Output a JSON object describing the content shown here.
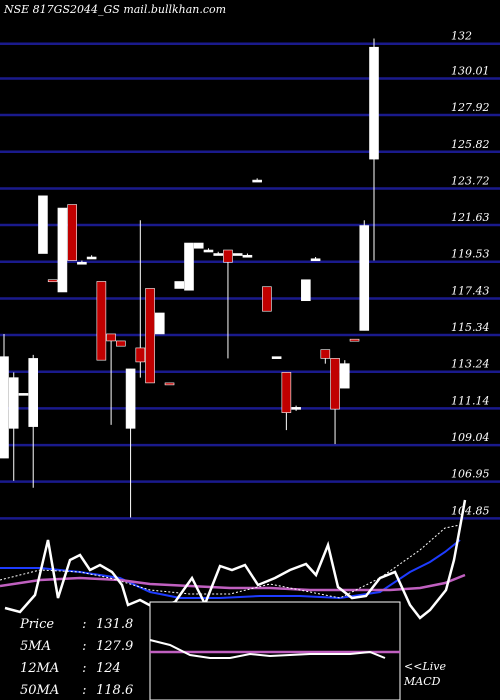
{
  "header": {
    "title": "NSE 817GS2044_GS mail.bullkhan.com"
  },
  "legend": {
    "price_label": "Price",
    "price_value": "131.8",
    "ma5_label": "5MA",
    "ma5_value": "127.9",
    "ma12_label": "12MA",
    "ma12_value": "124",
    "ma50_label": "50MA",
    "ma50_value": "118.6"
  },
  "macd_label": "MACD",
  "live_label": "<<Live",
  "colors": {
    "background": "#000000",
    "grid": "#1a1a8c",
    "up_candle": "#ffffff",
    "down_candle": "#c00000",
    "ma5": "#ffffff",
    "ma12": "#1e3cff",
    "ma50": "#c060c0"
  },
  "chart_data": {
    "type": "candlestick",
    "title": "NSE 817GS2044_GS mail.bullkhan.com",
    "ylim": [
      103.9,
      134.5
    ],
    "y_ticks": [
      "132",
      "130.01",
      "127.92",
      "125.82",
      "123.72",
      "121.63",
      "119.53",
      "117.43",
      "115.34",
      "113.24",
      "111.14",
      "109.04",
      "106.95",
      "104.85"
    ],
    "grid": true,
    "candles": [
      {
        "open": 108.3,
        "high": 115.4,
        "low": 108.3,
        "close": 114.1
      },
      {
        "open": 110.0,
        "high": 113.2,
        "low": 107.0,
        "close": 112.9
      },
      {
        "open": 112.0,
        "high": 112.0,
        "low": 111.9,
        "close": 112.0
      },
      {
        "open": 110.1,
        "high": 114.2,
        "low": 106.6,
        "close": 114.0
      },
      {
        "open": 120.0,
        "high": 123.3,
        "low": 120.0,
        "close": 123.3
      },
      {
        "open": 118.5,
        "high": 118.5,
        "low": 118.4,
        "close": 118.4
      },
      {
        "open": 117.8,
        "high": 122.6,
        "low": 117.8,
        "close": 122.6
      },
      {
        "open": 122.8,
        "high": 122.8,
        "low": 119.6,
        "close": 119.6
      },
      {
        "open": 119.5,
        "high": 119.6,
        "low": 119.5,
        "close": 119.5
      },
      {
        "open": 119.8,
        "high": 119.9,
        "low": 119.8,
        "close": 119.8
      },
      {
        "open": 118.4,
        "high": 118.4,
        "low": 113.9,
        "close": 113.9
      },
      {
        "open": 115.4,
        "high": 115.4,
        "low": 110.2,
        "close": 115.0
      },
      {
        "open": 115.0,
        "high": 115.0,
        "low": 114.7,
        "close": 114.7
      },
      {
        "open": 110.0,
        "high": 113.4,
        "low": 104.9,
        "close": 113.4
      },
      {
        "open": 114.6,
        "high": 121.9,
        "low": 112.9,
        "close": 113.8
      },
      {
        "open": 118.0,
        "high": 118.0,
        "low": 112.6,
        "close": 112.6
      },
      {
        "open": 115.4,
        "high": 116.6,
        "low": 115.4,
        "close": 116.6
      },
      {
        "open": 112.6,
        "high": 112.6,
        "low": 112.5,
        "close": 112.5
      },
      {
        "open": 118.0,
        "high": 118.4,
        "low": 118.0,
        "close": 118.4
      },
      {
        "open": 117.9,
        "high": 120.6,
        "low": 117.9,
        "close": 120.6
      },
      {
        "open": 120.3,
        "high": 120.6,
        "low": 120.3,
        "close": 120.6
      },
      {
        "open": 120.2,
        "high": 120.3,
        "low": 120.1,
        "close": 120.2
      },
      {
        "open": 120.0,
        "high": 120.1,
        "low": 119.9,
        "close": 120.0
      },
      {
        "open": 120.2,
        "high": 120.2,
        "low": 114.0,
        "close": 119.5
      },
      {
        "open": 120.0,
        "high": 120.0,
        "low": 119.9,
        "close": 120.0
      },
      {
        "open": 119.9,
        "high": 120.0,
        "low": 119.9,
        "close": 119.9
      },
      {
        "open": 124.2,
        "high": 124.3,
        "low": 124.2,
        "close": 124.2
      },
      {
        "open": 118.1,
        "high": 118.1,
        "low": 116.7,
        "close": 116.7
      },
      {
        "open": 114.1,
        "high": 114.1,
        "low": 114.0,
        "close": 114.1
      },
      {
        "open": 113.2,
        "high": 113.2,
        "low": 109.9,
        "close": 110.9
      },
      {
        "open": 111.2,
        "high": 111.3,
        "low": 111.0,
        "close": 111.2
      },
      {
        "open": 117.3,
        "high": 118.5,
        "low": 117.3,
        "close": 118.5
      },
      {
        "open": 119.6,
        "high": 119.8,
        "low": 119.6,
        "close": 119.7
      },
      {
        "open": 114.5,
        "high": 114.5,
        "low": 113.7,
        "close": 114.0
      },
      {
        "open": 114.0,
        "high": 114.0,
        "low": 109.1,
        "close": 111.1
      },
      {
        "open": 112.3,
        "high": 113.9,
        "low": 112.3,
        "close": 113.7
      },
      {
        "open": 115.1,
        "high": 115.1,
        "low": 115.0,
        "close": 115.0
      },
      {
        "open": 115.6,
        "high": 121.9,
        "low": 115.6,
        "close": 121.6
      },
      {
        "open": 125.4,
        "high": 132.3,
        "low": 119.6,
        "close": 131.8
      }
    ]
  }
}
